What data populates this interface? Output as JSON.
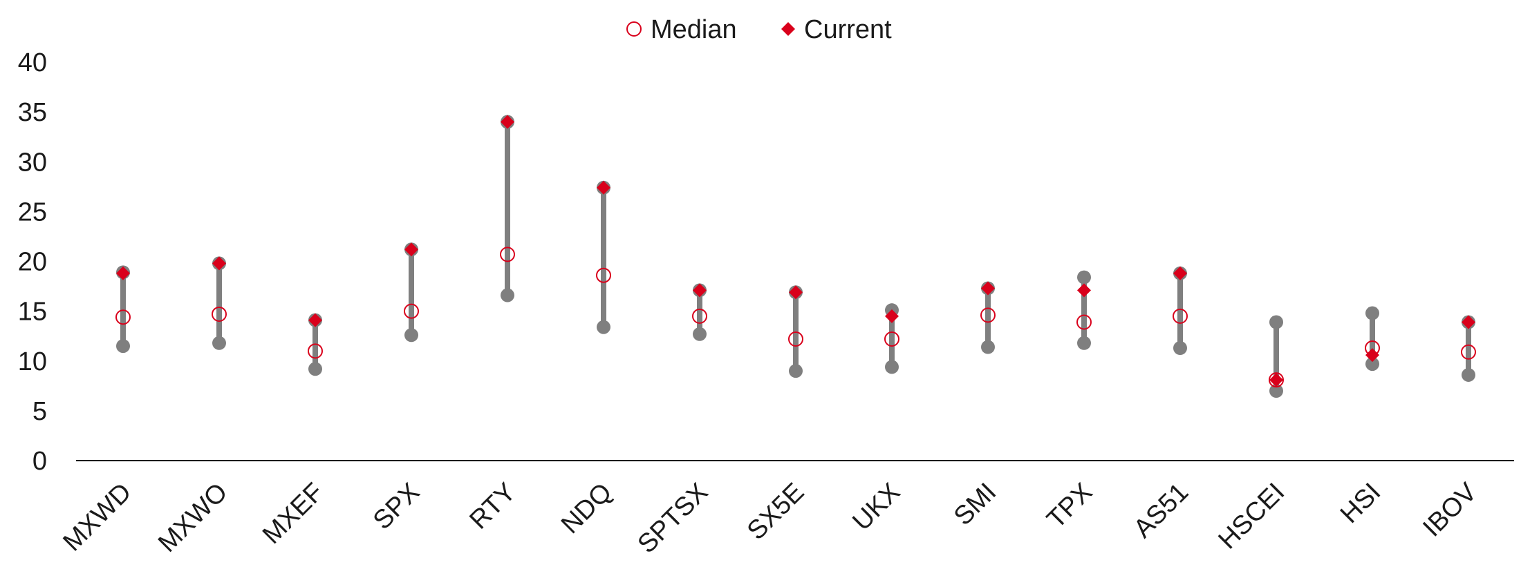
{
  "chart_data": {
    "type": "range-dot",
    "title": "",
    "xlabel": "",
    "ylabel": "",
    "ylim": [
      0,
      40
    ],
    "yticks": [
      0,
      5,
      10,
      15,
      20,
      25,
      30,
      35,
      40
    ],
    "grid": false,
    "legend_position": "top-center",
    "categories": [
      "MXWD",
      "MXWO",
      "MXEF",
      "SPX",
      "RTY",
      "NDQ",
      "SPTSX",
      "SX5E",
      "UKX",
      "SMI",
      "TPX",
      "AS51",
      "HSCEI",
      "HSI",
      "IBOV"
    ],
    "series": [
      {
        "name": "Median",
        "marker": "hollow-circle",
        "color": "#d9001b",
        "values": [
          14.4,
          14.7,
          11.0,
          15.0,
          20.7,
          18.6,
          14.5,
          12.2,
          12.2,
          14.6,
          13.9,
          14.5,
          8.1,
          11.3,
          10.9
        ]
      },
      {
        "name": "Current",
        "marker": "diamond",
        "color": "#d9001b",
        "values": [
          18.8,
          19.8,
          14.1,
          21.2,
          34.0,
          27.4,
          17.1,
          16.9,
          14.5,
          17.3,
          17.1,
          18.8,
          8.1,
          10.6,
          13.9
        ]
      }
    ],
    "range": {
      "color": "#7f7f7f",
      "high": [
        18.9,
        19.8,
        14.1,
        21.2,
        34.0,
        27.4,
        17.1,
        16.9,
        15.1,
        17.3,
        18.4,
        18.8,
        13.9,
        14.8,
        13.9
      ],
      "low": [
        11.5,
        11.8,
        9.2,
        12.6,
        16.6,
        13.4,
        12.7,
        9.0,
        9.4,
        11.4,
        11.8,
        11.3,
        7.0,
        9.7,
        8.6
      ]
    }
  }
}
